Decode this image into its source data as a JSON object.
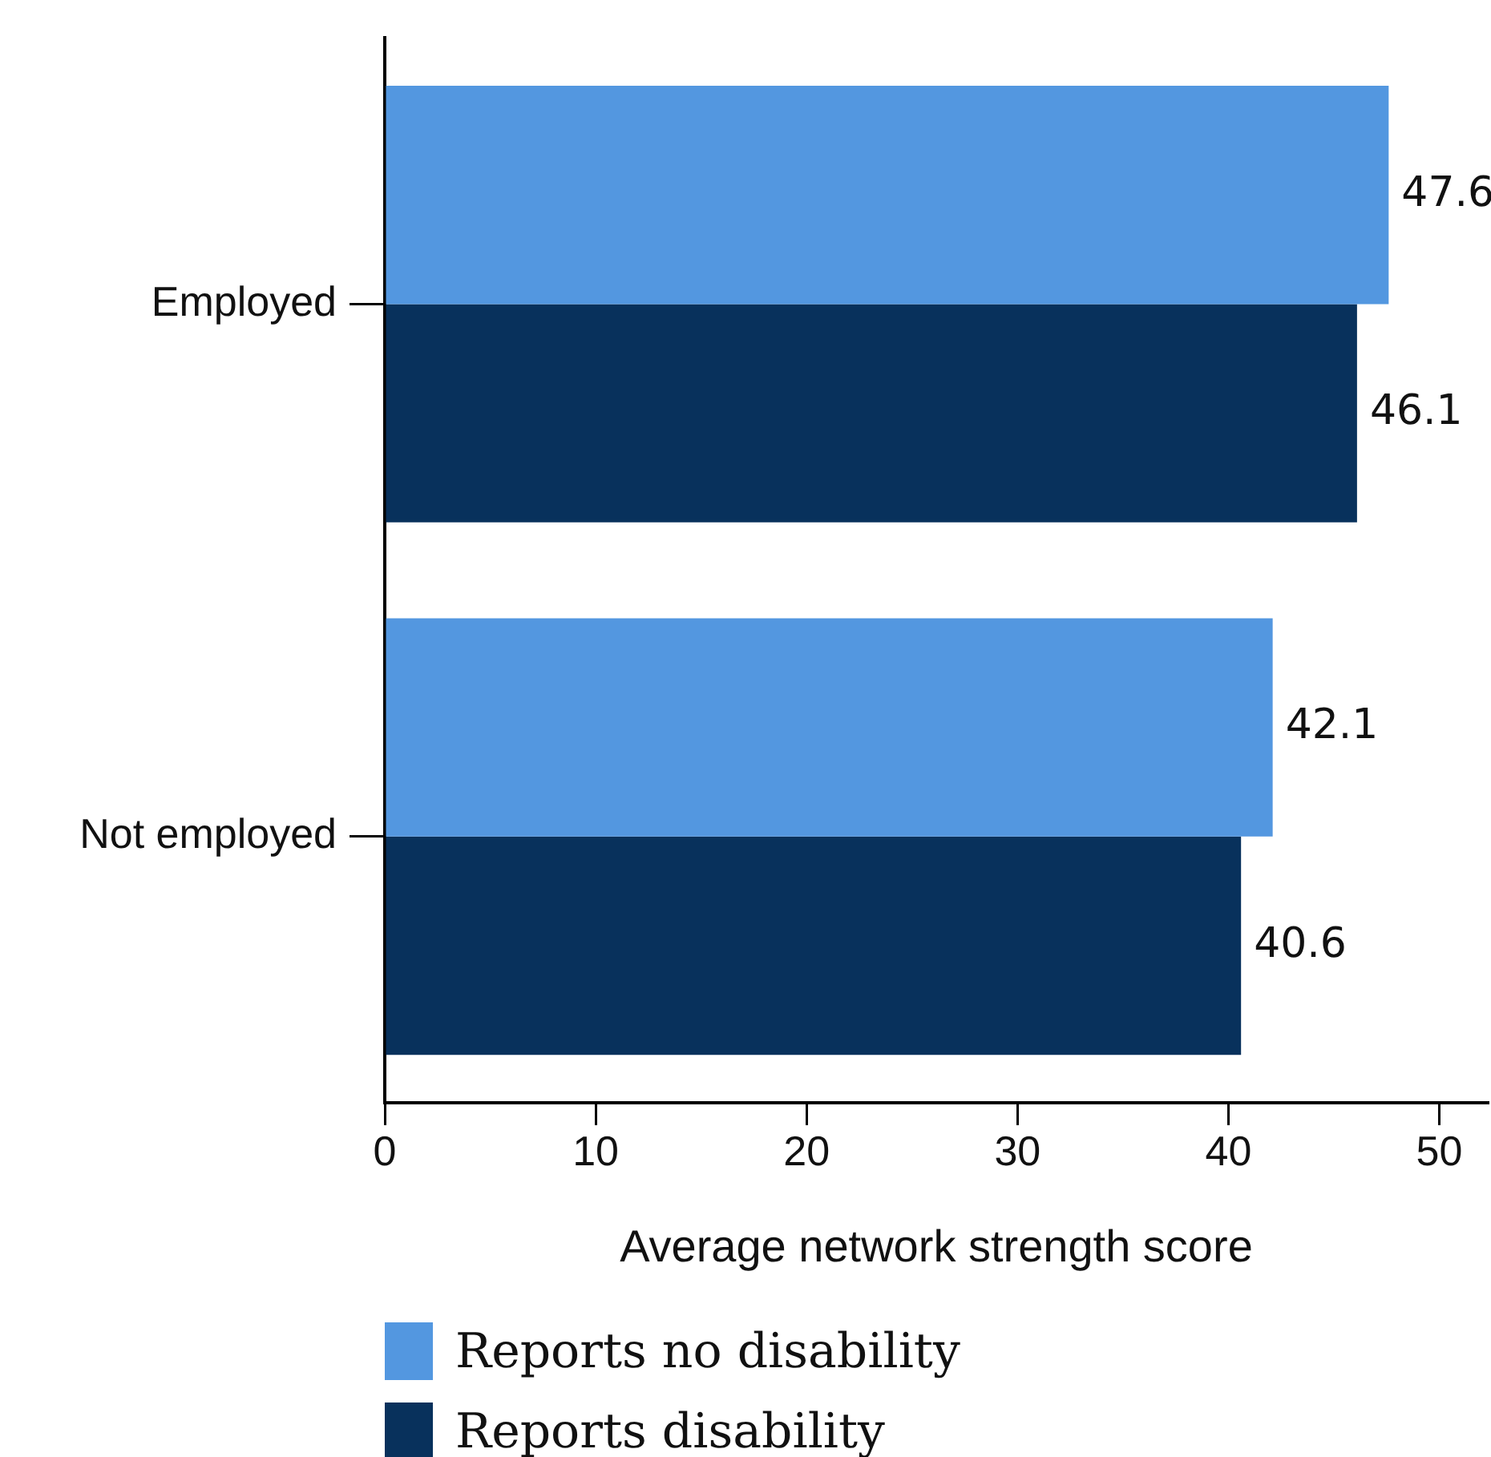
{
  "chart_data": {
    "type": "bar",
    "orientation": "horizontal",
    "xlabel": "Average network strength score",
    "categories": [
      "Employed",
      "Not employed"
    ],
    "series": [
      {
        "name": "Reports no disability",
        "color": "#5397e0",
        "values": [
          47.6,
          42.1
        ]
      },
      {
        "name": "Reports disability",
        "color": "#08315c",
        "values": [
          46.1,
          40.6
        ]
      }
    ],
    "xlim": [
      0,
      52.3
    ],
    "xticks": [
      0,
      10,
      20,
      30,
      40,
      50
    ],
    "data_labels": true,
    "grid": false,
    "legend": "bottom"
  }
}
